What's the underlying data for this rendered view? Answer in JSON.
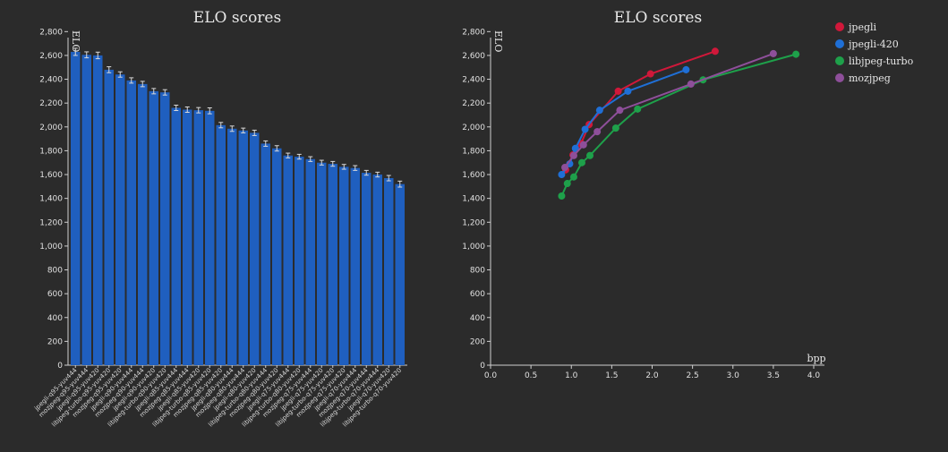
{
  "chart_data": [
    {
      "type": "bar",
      "title": "ELO scores",
      "ylabel": "ELO",
      "xlabel": "",
      "ylim": [
        0,
        2900
      ],
      "yticks": [
        0,
        200,
        400,
        600,
        800,
        1000,
        1200,
        1400,
        1600,
        1800,
        2000,
        2200,
        2400,
        2600,
        2800
      ],
      "color": "#1f5fbf",
      "errorbar_color": "#d8d8d8",
      "categories": [
        "jpegli-q95-yuv444",
        "mozjpeg-q95-yuv444",
        "jpegli-q95-yuv420",
        "libjpeg-turbo-q95-yuv420",
        "mozjpeg-q95-yuv420",
        "jpegli-q90-yuv444",
        "mozjpeg-q90-yuv444",
        "jpegli-q90-yuv420",
        "libjpeg-turbo-q90-yuv420",
        "jpegli-q85-yuv444",
        "mozjpeg-q85-yuv444",
        "jpegli-q85-yuv420",
        "libjpeg-turbo-q85-yuv420",
        "mozjpeg-q85-yuv420",
        "jpegli-q80-yuv444",
        "mozjpeg-q80-yuv444",
        "jpegli-q80-yuv420",
        "libjpeg-turbo-q80-yuv444",
        "mozjpeg-q80-yuv420",
        "jpegli-q75-yuv444",
        "libjpeg-turbo-q80-yuv420",
        "mozjpeg-q75-yuv444",
        "jpegli-q75-yuv420",
        "libjpeg-turbo-q75-yuv420",
        "mozjpeg-q75-yuv420",
        "jpegli-q70-yuv444",
        "mozjpeg-q70-yuv444",
        "libjpeg-turbo-q70-yuv444",
        "jpegli-q70-yuv420",
        "libjpeg-turbo-q70-yuv420"
      ],
      "values": [
        2630,
        2605,
        2600,
        2480,
        2440,
        2390,
        2360,
        2300,
        2290,
        2160,
        2145,
        2140,
        2135,
        2015,
        1985,
        1970,
        1950,
        1860,
        1820,
        1760,
        1750,
        1730,
        1700,
        1690,
        1665,
        1655,
        1615,
        1600,
        1570,
        1520
      ],
      "errors": [
        60,
        50,
        55,
        50,
        45,
        45,
        45,
        45,
        45,
        45,
        45,
        45,
        50,
        45,
        45,
        40,
        45,
        45,
        45,
        40,
        40,
        40,
        40,
        40,
        40,
        40,
        40,
        40,
        45,
        50
      ]
    },
    {
      "type": "line",
      "title": "ELO scores",
      "ylabel": "ELO",
      "xlabel": "bpp",
      "xlim": [
        0,
        4.0
      ],
      "ylim": [
        0,
        2900
      ],
      "xticks": [
        "0.0",
        "0.5",
        "1.0",
        "1.5",
        "2.0",
        "2.5",
        "3.0",
        "3.5",
        "4.0"
      ],
      "yticks": [
        0,
        200,
        400,
        600,
        800,
        1000,
        1200,
        1400,
        1600,
        1800,
        2000,
        2200,
        2400,
        2600,
        2800
      ],
      "legend_position": "top-right",
      "series": [
        {
          "name": "jpegli",
          "color": "#d0183a",
          "points": [
            [
              0.93,
              1640
            ],
            [
              1.02,
              1765
            ],
            [
              1.12,
              1860
            ],
            [
              1.22,
              2020
            ],
            [
              1.58,
              2300
            ],
            [
              1.98,
              2445
            ],
            [
              2.78,
              2635
            ]
          ]
        },
        {
          "name": "jpegli-420",
          "color": "#1f6fd6",
          "points": [
            [
              0.88,
              1600
            ],
            [
              0.98,
              1690
            ],
            [
              1.05,
              1820
            ],
            [
              1.17,
              1980
            ],
            [
              1.35,
              2140
            ],
            [
              1.7,
              2300
            ],
            [
              2.42,
              2480
            ]
          ]
        },
        {
          "name": "libjpeg-turbo",
          "color": "#1ea04a",
          "points": [
            [
              0.88,
              1420
            ],
            [
              0.95,
              1525
            ],
            [
              1.03,
              1580
            ],
            [
              1.13,
              1700
            ],
            [
              1.23,
              1760
            ],
            [
              1.55,
              1990
            ],
            [
              1.82,
              2150
            ],
            [
              2.63,
              2395
            ],
            [
              3.78,
              2610
            ]
          ]
        },
        {
          "name": "mozjpeg",
          "color": "#8e4f9a",
          "points": [
            [
              0.92,
              1660
            ],
            [
              1.03,
              1760
            ],
            [
              1.15,
              1850
            ],
            [
              1.32,
              1960
            ],
            [
              1.6,
              2140
            ],
            [
              2.48,
              2360
            ],
            [
              3.5,
              2615
            ]
          ]
        }
      ]
    }
  ]
}
